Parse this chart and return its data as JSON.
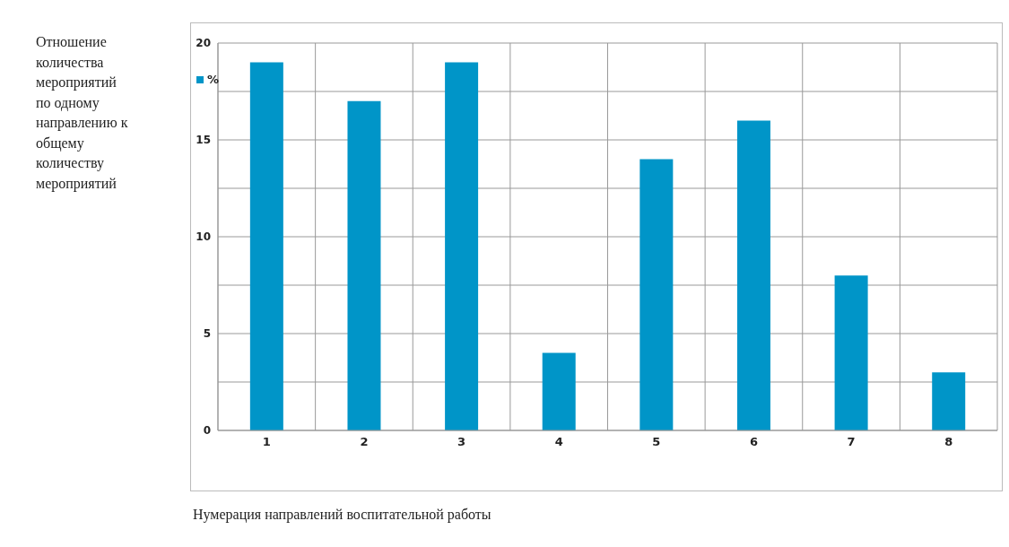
{
  "chart_data": {
    "type": "bar",
    "ylabel": "Отношение количества мероприятий по одному направлению к общему количеству мероприятий",
    "xlabel": "Нумерация направлений воспитательной работы",
    "categories": [
      "1",
      "2",
      "3",
      "4",
      "5",
      "6",
      "7",
      "8"
    ],
    "series": [
      {
        "name": "%",
        "color": "#0095c8",
        "values": [
          19,
          17,
          19,
          4,
          14,
          16,
          8,
          3
        ]
      }
    ],
    "ylim": [
      0,
      20
    ],
    "yticks": [
      0,
      {
        "value": 2.5,
        "label": null
      },
      5,
      {
        "value": 7.5,
        "label": null
      },
      10,
      {
        "value": 12.5,
        "label": null
      },
      15,
      {
        "value": 17.5,
        "label": null
      },
      20
    ],
    "grid": true,
    "legend": "top left"
  }
}
